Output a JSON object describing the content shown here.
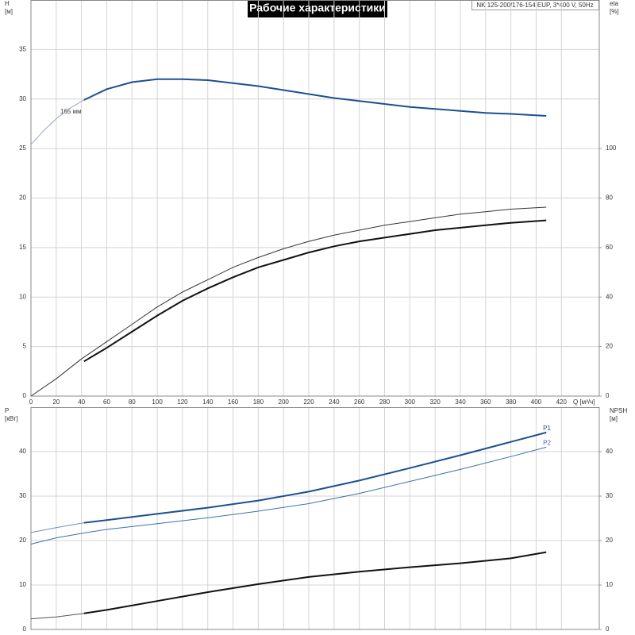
{
  "header": {
    "title": "Рабочие характеристики",
    "info": "NK 125-200/176-154 EUP, 3*400 V, 50Hz"
  },
  "chart_data": [
    {
      "type": "line",
      "ylabel": "H",
      "yunit": "[м]",
      "y2label": "eta",
      "y2unit": "[%]",
      "xlabel": "Q [м³/ч]",
      "annotations": [
        "165 мм"
      ],
      "xlim": [
        0,
        450
      ],
      "xticks": [
        0,
        20,
        40,
        60,
        80,
        100,
        120,
        140,
        160,
        180,
        200,
        220,
        240,
        260,
        280,
        300,
        320,
        340,
        360,
        380,
        400,
        420
      ],
      "xticklabels": true,
      "ylim": [
        0,
        40
      ],
      "yticks": [
        0,
        5,
        10,
        15,
        20,
        25,
        30,
        35
      ],
      "y2lim": [
        0,
        160
      ],
      "y2ticks": [
        0,
        20,
        40,
        60,
        80,
        100
      ],
      "grid": true,
      "series": [
        {
          "color": "#9aa6b8",
          "linewidth": 1,
          "x": [
            0,
            10,
            20,
            30,
            42
          ],
          "values": [
            25.4,
            26.8,
            28.0,
            29.0,
            29.9
          ]
        },
        {
          "color": "#1f4f8f",
          "linewidth": 2,
          "x": [
            42,
            60,
            80,
            100,
            120,
            140,
            160,
            180,
            200,
            220,
            240,
            260,
            280,
            300,
            320,
            340,
            360,
            380,
            408
          ],
          "values": [
            29.9,
            31.0,
            31.7,
            32.0,
            32.0,
            31.9,
            31.6,
            31.3,
            30.9,
            30.5,
            30.1,
            29.8,
            29.5,
            29.2,
            29.0,
            28.8,
            28.6,
            28.5,
            28.3
          ]
        },
        {
          "color": "#333333",
          "linewidth": 1,
          "axis": "y2",
          "x": [
            0,
            20,
            40,
            60,
            80,
            100,
            120,
            140,
            160,
            180,
            200,
            220,
            240,
            260,
            280,
            300,
            320,
            340,
            360,
            380,
            408
          ],
          "values": [
            0,
            7,
            15,
            22,
            29,
            36,
            42,
            47,
            52,
            56,
            59.5,
            62.5,
            65,
            67,
            69,
            70.5,
            72,
            73.5,
            74.5,
            75.5,
            76.3
          ]
        },
        {
          "color": "#111111",
          "linewidth": 2,
          "axis": "y2",
          "x": [
            42,
            60,
            80,
            100,
            120,
            140,
            160,
            180,
            200,
            220,
            240,
            260,
            280,
            300,
            320,
            340,
            360,
            380,
            408
          ],
          "values": [
            14,
            19.5,
            26,
            32.5,
            38.5,
            43.5,
            48,
            52,
            55,
            58,
            60.5,
            62.5,
            64,
            65.5,
            67,
            68,
            69,
            70,
            71
          ]
        }
      ]
    },
    {
      "type": "line",
      "ylabel": "P",
      "yunit": "[кВт]",
      "y2label": "NPSH",
      "y2unit": "[м]",
      "xlim": [
        0,
        450
      ],
      "xticks": [
        0,
        20,
        40,
        60,
        80,
        100,
        120,
        140,
        160,
        180,
        200,
        220,
        240,
        260,
        280,
        300,
        320,
        340,
        360,
        380,
        400,
        420
      ],
      "xticklabels": false,
      "ylim": [
        0,
        50
      ],
      "yticks": [
        0,
        10,
        20,
        30,
        40
      ],
      "y2lim": [
        0,
        50
      ],
      "y2ticks": [
        0,
        10,
        20,
        30,
        40
      ],
      "grid": true,
      "series": [
        {
          "color": "#6d8fc0",
          "linewidth": 1,
          "x": [
            0,
            20,
            42
          ],
          "values": [
            21.8,
            22.9,
            24.0
          ]
        },
        {
          "name": "P1",
          "color": "#1f4f8f",
          "linewidth": 2,
          "x": [
            42,
            60,
            100,
            140,
            180,
            220,
            260,
            300,
            340,
            380,
            408
          ],
          "values": [
            24.0,
            24.6,
            26.0,
            27.4,
            29.0,
            31.0,
            33.5,
            36.3,
            39.2,
            42.2,
            44.3
          ]
        },
        {
          "name": "P2",
          "color": "#3f6fae",
          "linewidth": 1,
          "x": [
            0,
            20,
            42,
            60,
            100,
            140,
            180,
            220,
            260,
            300,
            340,
            380,
            408
          ],
          "values": [
            19.2,
            20.6,
            21.7,
            22.5,
            23.8,
            25.1,
            26.6,
            28.3,
            30.6,
            33.3,
            36.0,
            38.9,
            41.0
          ]
        },
        {
          "color": "#555555",
          "linewidth": 1,
          "axis": "y2",
          "x": [
            0,
            20,
            42
          ],
          "values": [
            2.4,
            2.8,
            3.6
          ]
        },
        {
          "color": "#111111",
          "linewidth": 2,
          "axis": "y2",
          "x": [
            42,
            60,
            100,
            140,
            180,
            220,
            260,
            300,
            340,
            380,
            408
          ],
          "values": [
            3.6,
            4.4,
            6.4,
            8.4,
            10.2,
            11.8,
            13.0,
            14.0,
            14.9,
            16.0,
            17.4
          ]
        }
      ]
    }
  ]
}
